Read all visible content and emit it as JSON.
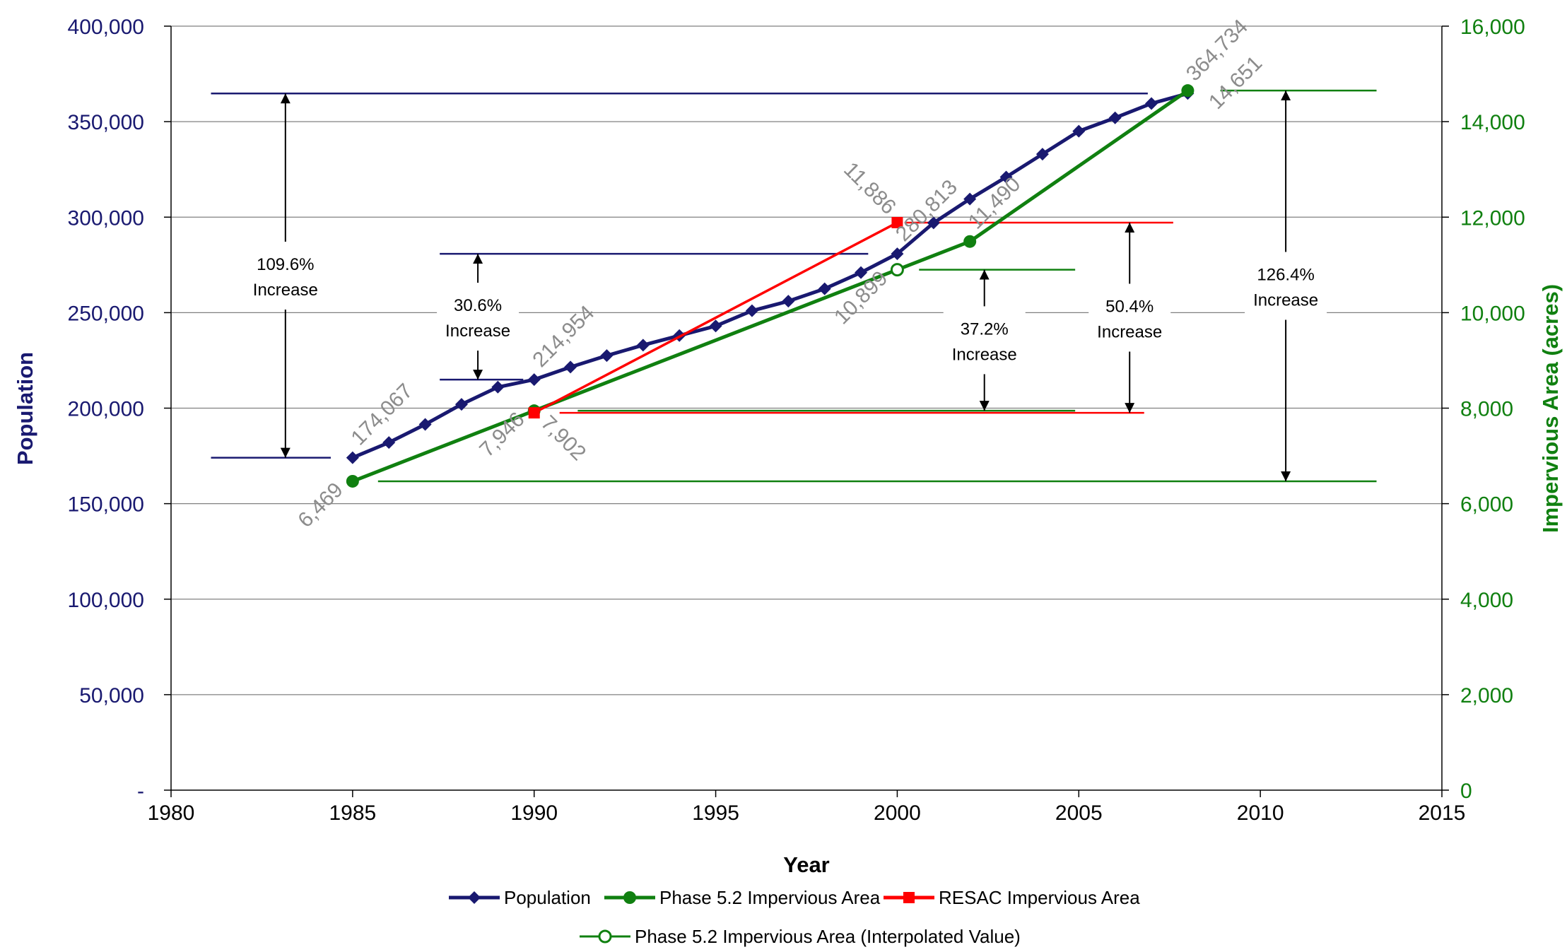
{
  "chart_data": {
    "type": "line",
    "xlabel": "Year",
    "ylabel_left": "Population",
    "ylabel_right": "Impervious Area (acres)",
    "xlim": [
      1980,
      2015
    ],
    "ylim_left": [
      0,
      400000
    ],
    "ylim_right": [
      0,
      16000
    ],
    "x_ticks": [
      "1980",
      "1985",
      "1990",
      "1995",
      "2000",
      "2005",
      "2010",
      "2015"
    ],
    "y_left_ticks": [
      "-",
      "50,000",
      "100,000",
      "150,000",
      "200,000",
      "250,000",
      "300,000",
      "350,000",
      "400,000"
    ],
    "y_right_ticks": [
      "0",
      "2,000",
      "4,000",
      "6,000",
      "8,000",
      "10,000",
      "12,000",
      "14,000",
      "16,000"
    ],
    "grid": "horizontal",
    "legend_position": "bottom",
    "colors": {
      "population": "#191970",
      "phase52": "#108010",
      "resac": "#ff0000",
      "axis_left": "#191970",
      "axis_right": "#108010",
      "grid": "#808080",
      "data_label": "#8c8c8c"
    },
    "series": [
      {
        "name": "Population",
        "axis": "left",
        "marker": "diamond",
        "x": [
          1985,
          1986,
          1987,
          1988,
          1989,
          1990,
          1991,
          1992,
          1993,
          1994,
          1995,
          1996,
          1997,
          1998,
          1999,
          2000,
          2001,
          2002,
          2003,
          2004,
          2005,
          2006,
          2007,
          2008
        ],
        "y": [
          174067,
          182000,
          191500,
          202000,
          211000,
          214954,
          221500,
          227500,
          233000,
          238000,
          243000,
          251000,
          256000,
          262500,
          271000,
          280813,
          297000,
          309500,
          321000,
          333000,
          345000,
          352000,
          359500,
          364734
        ]
      },
      {
        "name": "Phase 5.2 Impervious Area",
        "axis": "right",
        "marker": "circle",
        "x": [
          1985,
          1990,
          2002,
          2008
        ],
        "y": [
          6469,
          7946,
          11490,
          14651
        ]
      },
      {
        "name": "RESAC Impervious Area",
        "axis": "right",
        "marker": "square",
        "x": [
          1990,
          2000
        ],
        "y": [
          7902,
          11886
        ]
      },
      {
        "name": "Phase 5.2 Impervious Area (Interpolated Value)",
        "axis": "right",
        "marker": "open-circle",
        "x": [
          2000
        ],
        "y": [
          10899
        ]
      }
    ],
    "data_labels": [
      {
        "text": "174,067",
        "x": 1985,
        "y": 174067,
        "axis": "left"
      },
      {
        "text": "214,954",
        "x": 1990,
        "y": 214954,
        "axis": "left"
      },
      {
        "text": "280,813",
        "x": 2000,
        "y": 280813,
        "axis": "left"
      },
      {
        "text": "364,734",
        "x": 2008,
        "y": 364734,
        "axis": "left"
      },
      {
        "text": "6,469",
        "x": 1985,
        "y": 6469,
        "axis": "right"
      },
      {
        "text": "7,946",
        "x": 1990,
        "y": 7946,
        "axis": "right"
      },
      {
        "text": "7,902",
        "x": 1990,
        "y": 7902,
        "axis": "right"
      },
      {
        "text": "11,886",
        "x": 2000,
        "y": 11886,
        "axis": "right"
      },
      {
        "text": "10,899",
        "x": 2000,
        "y": 10899,
        "axis": "right"
      },
      {
        "text": "11,490",
        "x": 2002,
        "y": 11490,
        "axis": "right"
      },
      {
        "text": "14,651",
        "x": 2008,
        "y": 14651,
        "axis": "right"
      }
    ],
    "annotations": [
      {
        "pct": "109.6%",
        "word": "Increase",
        "color": "#191970",
        "axis": "left",
        "from": 174067,
        "to": 364734,
        "arrow_x": 1983.15
      },
      {
        "pct": "30.6%",
        "word": "Increase",
        "color": "#191970",
        "axis": "left",
        "from": 214954,
        "to": 280813,
        "arrow_x": 1988.45
      },
      {
        "pct": "37.2%",
        "word": "Increase",
        "color": "#108010",
        "axis": "right",
        "from": 7946,
        "to": 10899,
        "arrow_x": 2002.4
      },
      {
        "pct": "50.4%",
        "word": "Increase",
        "color": "#ff0000",
        "axis": "right",
        "from": 7902,
        "to": 11886,
        "arrow_x": 2006.4
      },
      {
        "pct": "126.4%",
        "word": "Increase",
        "color": "#108010",
        "axis": "right",
        "from": 6469,
        "to": 14651,
        "arrow_x": 2010.7
      }
    ]
  }
}
